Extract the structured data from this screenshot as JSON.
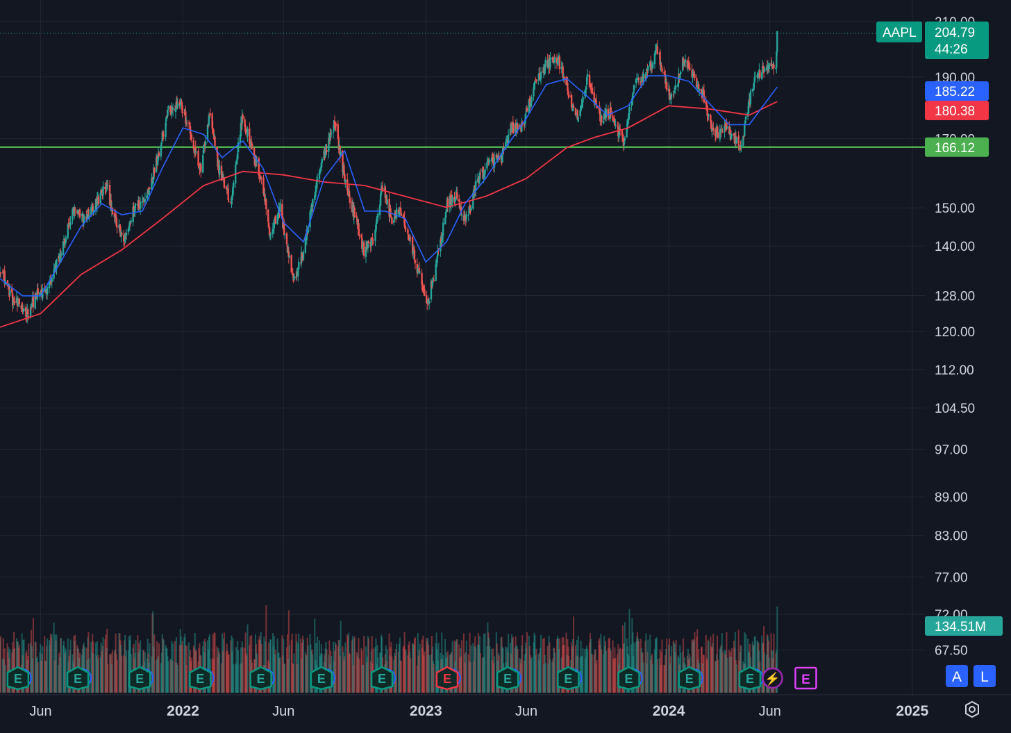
{
  "chart_data": {
    "type": "candlestick",
    "symbol": "AAPL",
    "last_price": "204.79",
    "countdown": "44:26",
    "price_scale": "log",
    "ylim": [
      64,
      212
    ],
    "xlim": [
      "2021-04-01",
      "2025-01-20"
    ],
    "price_ticks": [
      "210.00",
      "190.00",
      "170.00",
      "150.00",
      "140.00",
      "128.00",
      "120.00",
      "112.00",
      "104.50",
      "97.00",
      "89.00",
      "83.00",
      "77.00",
      "72.00",
      "67.50"
    ],
    "time_ticks": [
      {
        "label": "Jun",
        "date": "2021-06-01",
        "bold": false
      },
      {
        "label": "2022",
        "date": "2022-01-01",
        "bold": true
      },
      {
        "label": "Jun",
        "date": "2022-06-01",
        "bold": false
      },
      {
        "label": "2023",
        "date": "2023-01-01",
        "bold": true
      },
      {
        "label": "Jun",
        "date": "2023-06-01",
        "bold": false
      },
      {
        "label": "2024",
        "date": "2024-01-01",
        "bold": true
      },
      {
        "label": "Jun",
        "date": "2024-06-01",
        "bold": false
      },
      {
        "label": "2025",
        "date": "2025-01-01",
        "bold": true
      }
    ],
    "grid": true,
    "price_path": [
      [
        "2021-04-01",
        134
      ],
      [
        "2021-04-20",
        126
      ],
      [
        "2021-05-12",
        123
      ],
      [
        "2021-05-25",
        127
      ],
      [
        "2021-06-10",
        128
      ],
      [
        "2021-07-01",
        137
      ],
      [
        "2021-07-20",
        148
      ],
      [
        "2021-08-05",
        146
      ],
      [
        "2021-08-20",
        149
      ],
      [
        "2021-09-08",
        155
      ],
      [
        "2021-09-22",
        145
      ],
      [
        "2021-10-05",
        140
      ],
      [
        "2021-10-20",
        149
      ],
      [
        "2021-11-05",
        151
      ],
      [
        "2021-11-20",
        160
      ],
      [
        "2021-12-10",
        178
      ],
      [
        "2021-12-28",
        180
      ],
      [
        "2022-01-10",
        172
      ],
      [
        "2022-01-27",
        159
      ],
      [
        "2022-02-10",
        176
      ],
      [
        "2022-02-24",
        160
      ],
      [
        "2022-03-14",
        150
      ],
      [
        "2022-03-31",
        176
      ],
      [
        "2022-04-15",
        165
      ],
      [
        "2022-04-29",
        157
      ],
      [
        "2022-05-12",
        142
      ],
      [
        "2022-05-27",
        149
      ],
      [
        "2022-06-16",
        130
      ],
      [
        "2022-06-30",
        137
      ],
      [
        "2022-07-15",
        150
      ],
      [
        "2022-07-29",
        162
      ],
      [
        "2022-08-17",
        174
      ],
      [
        "2022-09-02",
        156
      ],
      [
        "2022-09-30",
        138
      ],
      [
        "2022-10-13",
        140
      ],
      [
        "2022-10-28",
        155
      ],
      [
        "2022-11-10",
        146
      ],
      [
        "2022-11-25",
        148
      ],
      [
        "2022-12-15",
        136
      ],
      [
        "2023-01-03",
        125
      ],
      [
        "2023-01-20",
        137
      ],
      [
        "2023-02-02",
        150
      ],
      [
        "2023-02-16",
        152
      ],
      [
        "2023-03-02",
        145
      ],
      [
        "2023-03-20",
        157
      ],
      [
        "2023-04-10",
        162
      ],
      [
        "2023-04-25",
        163
      ],
      [
        "2023-05-10",
        172
      ],
      [
        "2023-05-25",
        172
      ],
      [
        "2023-06-15",
        186
      ],
      [
        "2023-06-30",
        193
      ],
      [
        "2023-07-19",
        195
      ],
      [
        "2023-08-04",
        182
      ],
      [
        "2023-08-18",
        174
      ],
      [
        "2023-09-01",
        189
      ],
      [
        "2023-09-20",
        175
      ],
      [
        "2023-10-05",
        177
      ],
      [
        "2023-10-26",
        167
      ],
      [
        "2023-11-10",
        186
      ],
      [
        "2023-11-30",
        190
      ],
      [
        "2023-12-14",
        198
      ],
      [
        "2024-01-05",
        181
      ],
      [
        "2024-01-24",
        195
      ],
      [
        "2024-02-08",
        188
      ],
      [
        "2024-02-23",
        182
      ],
      [
        "2024-03-08",
        170
      ],
      [
        "2024-03-26",
        172
      ],
      [
        "2024-04-10",
        168
      ],
      [
        "2024-04-19",
        165
      ],
      [
        "2024-05-03",
        183
      ],
      [
        "2024-05-15",
        190
      ],
      [
        "2024-06-04",
        194
      ],
      [
        "2024-06-10",
        193
      ],
      [
        "2024-06-12",
        204.79
      ]
    ],
    "sma_short": {
      "color": "#2962ff",
      "last_value": "185.22",
      "points": [
        [
          "2021-04-01",
          131
        ],
        [
          "2021-05-05",
          127
        ],
        [
          "2021-06-01",
          127
        ],
        [
          "2021-07-01",
          135
        ],
        [
          "2021-08-01",
          144
        ],
        [
          "2021-09-01",
          150
        ],
        [
          "2021-10-01",
          147
        ],
        [
          "2021-11-01",
          148
        ],
        [
          "2021-12-01",
          160
        ],
        [
          "2022-01-01",
          172
        ],
        [
          "2022-02-01",
          170
        ],
        [
          "2022-03-01",
          163
        ],
        [
          "2022-04-01",
          168
        ],
        [
          "2022-05-01",
          160
        ],
        [
          "2022-06-01",
          145
        ],
        [
          "2022-07-01",
          140
        ],
        [
          "2022-08-01",
          157
        ],
        [
          "2022-09-01",
          165
        ],
        [
          "2022-10-01",
          148
        ],
        [
          "2022-11-01",
          148
        ],
        [
          "2022-12-01",
          146
        ],
        [
          "2023-01-01",
          135
        ],
        [
          "2023-02-01",
          140
        ],
        [
          "2023-03-01",
          150
        ],
        [
          "2023-04-01",
          157
        ],
        [
          "2023-05-01",
          166
        ],
        [
          "2023-06-01",
          175
        ],
        [
          "2023-07-01",
          186
        ],
        [
          "2023-08-01",
          188
        ],
        [
          "2023-09-01",
          182
        ],
        [
          "2023-10-01",
          176
        ],
        [
          "2023-11-01",
          179
        ],
        [
          "2023-12-01",
          189
        ],
        [
          "2024-01-01",
          189
        ],
        [
          "2024-02-01",
          187
        ],
        [
          "2024-03-01",
          180
        ],
        [
          "2024-04-01",
          173
        ],
        [
          "2024-05-01",
          173
        ],
        [
          "2024-06-12",
          185.22
        ]
      ]
    },
    "sma_long": {
      "color": "#f23645",
      "last_value": "180.38",
      "points": [
        [
          "2021-04-01",
          120
        ],
        [
          "2021-06-01",
          123
        ],
        [
          "2021-08-01",
          132
        ],
        [
          "2021-10-01",
          138
        ],
        [
          "2021-12-01",
          146
        ],
        [
          "2022-02-01",
          155
        ],
        [
          "2022-04-01",
          159
        ],
        [
          "2022-06-01",
          158
        ],
        [
          "2022-08-01",
          156
        ],
        [
          "2022-10-01",
          155
        ],
        [
          "2022-12-01",
          152
        ],
        [
          "2023-02-01",
          149
        ],
        [
          "2023-04-01",
          152
        ],
        [
          "2023-06-01",
          157
        ],
        [
          "2023-08-01",
          166
        ],
        [
          "2023-09-10",
          169
        ],
        [
          "2023-11-01",
          172
        ],
        [
          "2024-01-01",
          179
        ],
        [
          "2024-03-01",
          178
        ],
        [
          "2024-05-01",
          176
        ],
        [
          "2024-06-12",
          180.38
        ]
      ]
    },
    "horizontal_line": {
      "value": "166.12",
      "color": "#4caf50"
    },
    "volume": {
      "last_value": "134.51M",
      "scale_max": 160
    },
    "events": [
      {
        "date": "2021-04-28",
        "type": "earnings",
        "label": "E",
        "style": "past"
      },
      {
        "date": "2021-07-27",
        "type": "earnings",
        "label": "E",
        "style": "past"
      },
      {
        "date": "2021-10-28",
        "type": "earnings",
        "label": "E",
        "style": "past"
      },
      {
        "date": "2022-01-27",
        "type": "earnings",
        "label": "E",
        "style": "past"
      },
      {
        "date": "2022-04-28",
        "type": "earnings",
        "label": "E",
        "style": "past"
      },
      {
        "date": "2022-07-28",
        "type": "earnings",
        "label": "E",
        "style": "past"
      },
      {
        "date": "2022-10-27",
        "type": "earnings",
        "label": "E",
        "style": "past"
      },
      {
        "date": "2023-02-02",
        "type": "earnings",
        "label": "E",
        "style": "miss"
      },
      {
        "date": "2023-05-04",
        "type": "earnings",
        "label": "E",
        "style": "past"
      },
      {
        "date": "2023-08-03",
        "type": "earnings",
        "label": "E",
        "style": "past"
      },
      {
        "date": "2023-11-02",
        "type": "earnings",
        "label": "E",
        "style": "past"
      },
      {
        "date": "2024-02-01",
        "type": "earnings",
        "label": "E",
        "style": "past"
      },
      {
        "date": "2024-05-02",
        "type": "earnings",
        "label": "E",
        "style": "past"
      },
      {
        "date": "2024-06-05",
        "type": "news",
        "label": "⚡",
        "style": "news"
      },
      {
        "date": "2024-07-25",
        "type": "earnings",
        "label": "E",
        "style": "upcoming"
      }
    ]
  },
  "controls": {
    "auto_scale": "A",
    "log_scale": "L"
  }
}
